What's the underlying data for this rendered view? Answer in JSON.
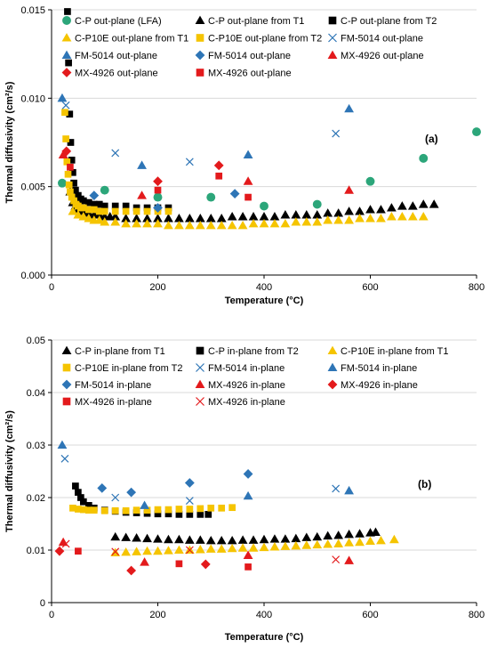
{
  "chart_data": [
    {
      "type": "scatter",
      "annotation": "(a)",
      "xlabel": "Temperature (°C)",
      "ylabel": "Thermal diffusivity (cm²/s)",
      "xlim": [
        0,
        800
      ],
      "ylim": [
        0,
        0.015
      ],
      "xticks": [
        "0",
        "200",
        "400",
        "600",
        "800"
      ],
      "yticks": [
        "0.000",
        "0.005",
        "0.010",
        "0.015"
      ],
      "grid": "horizontal",
      "legend": "top",
      "series": [
        {
          "name": "C-P out-plane (LFA)",
          "marker": "circle",
          "color": "#2ca67a",
          "x": [
            20,
            100,
            200,
            300,
            400,
            500,
            600,
            700,
            800
          ],
          "y": [
            0.0052,
            0.0048,
            0.0044,
            0.0044,
            0.0039,
            0.004,
            0.0053,
            0.0066,
            0.0081
          ]
        },
        {
          "name": "C-P out-plane from T1",
          "marker": "triangle",
          "color": "#000000",
          "x": [
            35,
            40,
            45,
            50,
            60,
            70,
            80,
            90,
            100,
            110,
            120,
            140,
            160,
            180,
            200,
            220,
            240,
            260,
            280,
            300,
            320,
            340,
            360,
            380,
            400,
            420,
            440,
            460,
            480,
            500,
            520,
            540,
            560,
            580,
            600,
            620,
            640,
            660,
            680,
            700,
            720
          ],
          "y": [
            0.0047,
            0.0041,
            0.0039,
            0.0037,
            0.0036,
            0.0035,
            0.0034,
            0.0034,
            0.0033,
            0.0033,
            0.0033,
            0.0032,
            0.0032,
            0.0032,
            0.0032,
            0.0032,
            0.0032,
            0.0032,
            0.0032,
            0.0032,
            0.0032,
            0.0033,
            0.0033,
            0.0033,
            0.0033,
            0.0033,
            0.0034,
            0.0034,
            0.0034,
            0.0034,
            0.0035,
            0.0035,
            0.0036,
            0.0036,
            0.0037,
            0.0037,
            0.0038,
            0.0039,
            0.0039,
            0.004,
            0.004
          ]
        },
        {
          "name": "C-P out-plane from T2",
          "marker": "square",
          "color": "#000000",
          "x": [
            30,
            32,
            34,
            36,
            38,
            40,
            42,
            45,
            50,
            55,
            60,
            70,
            80,
            90,
            100,
            120,
            140,
            160,
            180,
            200,
            220
          ],
          "y": [
            0.0149,
            0.012,
            0.0091,
            0.0075,
            0.0065,
            0.0058,
            0.0052,
            0.0048,
            0.0045,
            0.0043,
            0.0042,
            0.0041,
            0.004,
            0.004,
            0.0039,
            0.0039,
            0.0039,
            0.0038,
            0.0038,
            0.0038,
            0.0038
          ]
        },
        {
          "name": "C-P10E out-plane from T1",
          "marker": "triangle",
          "color": "#f5c400",
          "x": [
            40,
            50,
            60,
            70,
            80,
            90,
            100,
            120,
            140,
            160,
            180,
            200,
            220,
            240,
            260,
            280,
            300,
            320,
            340,
            360,
            380,
            400,
            420,
            440,
            460,
            480,
            500,
            520,
            540,
            560,
            580,
            600,
            620,
            640,
            660,
            680,
            700
          ],
          "y": [
            0.0036,
            0.0034,
            0.0033,
            0.0032,
            0.0031,
            0.0031,
            0.003,
            0.003,
            0.0029,
            0.0029,
            0.0029,
            0.0029,
            0.0028,
            0.0028,
            0.0028,
            0.0028,
            0.0028,
            0.0028,
            0.0028,
            0.0028,
            0.0029,
            0.0029,
            0.0029,
            0.0029,
            0.003,
            0.003,
            0.003,
            0.0031,
            0.0031,
            0.0031,
            0.0032,
            0.0032,
            0.0032,
            0.0033,
            0.0033,
            0.0033,
            0.0033
          ]
        },
        {
          "name": "C-P10E out-plane from T2",
          "marker": "square",
          "color": "#f5c400",
          "x": [
            25,
            27,
            29,
            31,
            33,
            35,
            38,
            42,
            46,
            50,
            55,
            60,
            70,
            80,
            90,
            100,
            120,
            140,
            160,
            180,
            200,
            220
          ],
          "y": [
            0.0092,
            0.0077,
            0.0064,
            0.0057,
            0.0051,
            0.0047,
            0.0044,
            0.0042,
            0.004,
            0.0039,
            0.0038,
            0.0038,
            0.0037,
            0.0037,
            0.0036,
            0.0036,
            0.0036,
            0.0036,
            0.0036,
            0.0036,
            0.0036,
            0.0036
          ]
        },
        {
          "name": "FM-5014 out-plane",
          "marker": "x",
          "color": "#2e75b6",
          "x": [
            27,
            120,
            260,
            535
          ],
          "y": [
            0.0096,
            0.0069,
            0.0064,
            0.008
          ]
        },
        {
          "name": "FM-5014 out-plane",
          "marker": "triangle",
          "color": "#2e75b6",
          "x": [
            20,
            170,
            370,
            560
          ],
          "y": [
            0.01,
            0.0062,
            0.0068,
            0.0094
          ]
        },
        {
          "name": "FM-5014 out-plane",
          "marker": "diamond",
          "color": "#2e75b6",
          "x": [
            80,
            200,
            345
          ],
          "y": [
            0.0045,
            0.0038,
            0.0046
          ]
        },
        {
          "name": "MX-4926 out-plane",
          "marker": "triangle",
          "color": "#e31a1c",
          "x": [
            22,
            170,
            370,
            560
          ],
          "y": [
            0.0068,
            0.0045,
            0.0053,
            0.0048
          ]
        },
        {
          "name": "MX-4926 out-plane",
          "marker": "diamond",
          "color": "#e31a1c",
          "x": [
            28,
            200,
            315
          ],
          "y": [
            0.007,
            0.0053,
            0.0062
          ]
        },
        {
          "name": "MX-4926 out-plane",
          "marker": "square",
          "color": "#e31a1c",
          "x": [
            35,
            200,
            315,
            370
          ],
          "y": [
            0.0061,
            0.0048,
            0.0056,
            0.0044
          ]
        }
      ]
    },
    {
      "type": "scatter",
      "annotation": "(b)",
      "xlabel": "Temperature (°C)",
      "ylabel": "Thermal diffusivity (cm²/s)",
      "xlim": [
        0,
        800
      ],
      "ylim": [
        0,
        0.05
      ],
      "xticks": [
        "0",
        "200",
        "400",
        "600",
        "800"
      ],
      "yticks": [
        "0",
        "0.01",
        "0.02",
        "0.03",
        "0.04",
        "0.05"
      ],
      "grid": "horizontal",
      "legend": "top",
      "series": [
        {
          "name": "C-P in-plane from T1",
          "marker": "triangle",
          "color": "#000000",
          "x": [
            120,
            140,
            160,
            180,
            200,
            220,
            240,
            260,
            280,
            300,
            320,
            340,
            360,
            380,
            400,
            420,
            440,
            460,
            480,
            500,
            520,
            540,
            560,
            580,
            600,
            610
          ],
          "y": [
            0.0125,
            0.0124,
            0.0123,
            0.0122,
            0.0121,
            0.012,
            0.012,
            0.0119,
            0.0119,
            0.0118,
            0.0118,
            0.0118,
            0.0119,
            0.0119,
            0.012,
            0.0121,
            0.0121,
            0.0122,
            0.0124,
            0.0125,
            0.0127,
            0.0128,
            0.013,
            0.0131,
            0.0133,
            0.0134
          ]
        },
        {
          "name": "C-P in-plane from T2",
          "marker": "square",
          "color": "#000000",
          "x": [
            45,
            50,
            55,
            60,
            70,
            80,
            100,
            120,
            140,
            160,
            180,
            200,
            220,
            240,
            260,
            280,
            295
          ],
          "y": [
            0.0222,
            0.021,
            0.02,
            0.0192,
            0.0185,
            0.018,
            0.0176,
            0.0174,
            0.0172,
            0.0171,
            0.017,
            0.0169,
            0.0169,
            0.0168,
            0.0168,
            0.0168,
            0.0168
          ]
        },
        {
          "name": "C-P10E in-plane from T1",
          "marker": "triangle",
          "color": "#f5c400",
          "x": [
            120,
            140,
            160,
            180,
            200,
            220,
            240,
            260,
            280,
            300,
            320,
            340,
            360,
            380,
            400,
            420,
            440,
            460,
            480,
            500,
            520,
            540,
            560,
            580,
            600,
            620,
            645
          ],
          "y": [
            0.0095,
            0.0096,
            0.0097,
            0.0098,
            0.0098,
            0.0099,
            0.01,
            0.01,
            0.0101,
            0.0102,
            0.0102,
            0.0103,
            0.0104,
            0.0104,
            0.0105,
            0.0106,
            0.0107,
            0.0108,
            0.0109,
            0.011,
            0.0111,
            0.0112,
            0.0114,
            0.0115,
            0.0117,
            0.0118,
            0.012
          ]
        },
        {
          "name": "C-P10E in-plane from T2",
          "marker": "square",
          "color": "#f5c400",
          "x": [
            40,
            50,
            60,
            70,
            80,
            100,
            120,
            140,
            160,
            180,
            200,
            220,
            240,
            260,
            280,
            300,
            320,
            340
          ],
          "y": [
            0.018,
            0.0178,
            0.0177,
            0.0176,
            0.0176,
            0.0175,
            0.0175,
            0.0175,
            0.0176,
            0.0176,
            0.0177,
            0.0177,
            0.0178,
            0.0178,
            0.0179,
            0.018,
            0.018,
            0.0181
          ]
        },
        {
          "name": "FM-5014 in-plane",
          "marker": "x",
          "color": "#2e75b6",
          "x": [
            25,
            120,
            260,
            535
          ],
          "y": [
            0.0274,
            0.02,
            0.0194,
            0.0217
          ]
        },
        {
          "name": "FM-5014 in-plane",
          "marker": "triangle",
          "color": "#2e75b6",
          "x": [
            20,
            175,
            370,
            560
          ],
          "y": [
            0.03,
            0.0185,
            0.0203,
            0.0213
          ]
        },
        {
          "name": "FM-5014 in-plane",
          "marker": "diamond",
          "color": "#2e75b6",
          "x": [
            95,
            150,
            260,
            370
          ],
          "y": [
            0.0218,
            0.021,
            0.0228,
            0.0245
          ]
        },
        {
          "name": "MX-4926 in-plane",
          "marker": "triangle",
          "color": "#e31a1c",
          "x": [
            22,
            175,
            370,
            560
          ],
          "y": [
            0.0115,
            0.0077,
            0.009,
            0.008
          ]
        },
        {
          "name": "MX-4926 in-plane",
          "marker": "diamond",
          "color": "#e31a1c",
          "x": [
            15,
            150,
            290
          ],
          "y": [
            0.0098,
            0.0061,
            0.0073
          ]
        },
        {
          "name": "MX-4926 in-plane",
          "marker": "square",
          "color": "#e31a1c",
          "x": [
            50,
            240,
            370
          ],
          "y": [
            0.0098,
            0.0074,
            0.0068
          ]
        },
        {
          "name": "MX-4926 in-plane",
          "marker": "x",
          "color": "#e31a1c",
          "x": [
            27,
            120,
            260,
            535
          ],
          "y": [
            0.0112,
            0.0097,
            0.01,
            0.0082
          ]
        }
      ]
    }
  ]
}
